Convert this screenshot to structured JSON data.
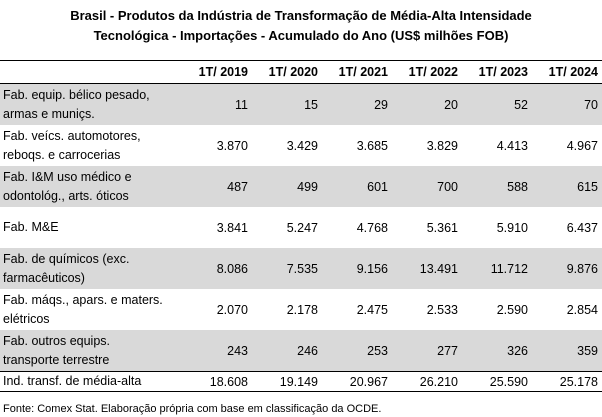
{
  "title_line1": "Brasil - Produtos da Indústria de Transformação de Média-Alta Intensidade",
  "title_line2": "Tecnológica - Importações - Acumulado do Ano (US$ milhões FOB)",
  "headers": [
    "",
    "1T/ 2019",
    "1T/ 2020",
    "1T/ 2021",
    "1T/ 2022",
    "1T/ 2023",
    "1T/ 2024"
  ],
  "rows": [
    {
      "label": "Fab. equip. bélico pesado, armas e munições",
      "label_line1": "Fab. equip. bélico pesado,",
      "label_line2": "armas e muniçs.",
      "values": [
        "11",
        "15",
        "29",
        "20",
        "52",
        "70"
      ]
    },
    {
      "label_line1": "Fab. veícs. automotores,",
      "label_line2": "reboqs. e carrocerias",
      "values": [
        "3.870",
        "3.429",
        "3.685",
        "3.829",
        "4.413",
        "4.967"
      ]
    },
    {
      "label_line1": "Fab. I&M uso médico e",
      "label_line2": "odontológ., arts. óticos",
      "values": [
        "487",
        "499",
        "601",
        "700",
        "588",
        "615"
      ]
    },
    {
      "label_line1": "Fab. M&E",
      "label_line2": "",
      "values": [
        "3.841",
        "5.247",
        "4.768",
        "5.361",
        "5.910",
        "6.437"
      ]
    },
    {
      "label_line1": "Fab. de químicos (exc.",
      "label_line2": "farmacêuticos)",
      "values": [
        "8.086",
        "7.535",
        "9.156",
        "13.491",
        "11.712",
        "9.876"
      ]
    },
    {
      "label_line1": "Fab. máqs., apars. e maters.",
      "label_line2": "elétricos",
      "values": [
        "2.070",
        "2.178",
        "2.475",
        "2.533",
        "2.590",
        "2.854"
      ]
    },
    {
      "label_line1": "Fab. outros equips.",
      "label_line2": "transporte terrestre",
      "values": [
        "243",
        "246",
        "253",
        "277",
        "326",
        "359"
      ]
    }
  ],
  "total": {
    "label": "Ind. transf. de média-alta",
    "values": [
      "18.608",
      "19.149",
      "20.967",
      "26.210",
      "25.590",
      "25.178"
    ]
  },
  "source": "Fonte: Comex Stat. Elaboração própria com base em classificação da OCDE."
}
